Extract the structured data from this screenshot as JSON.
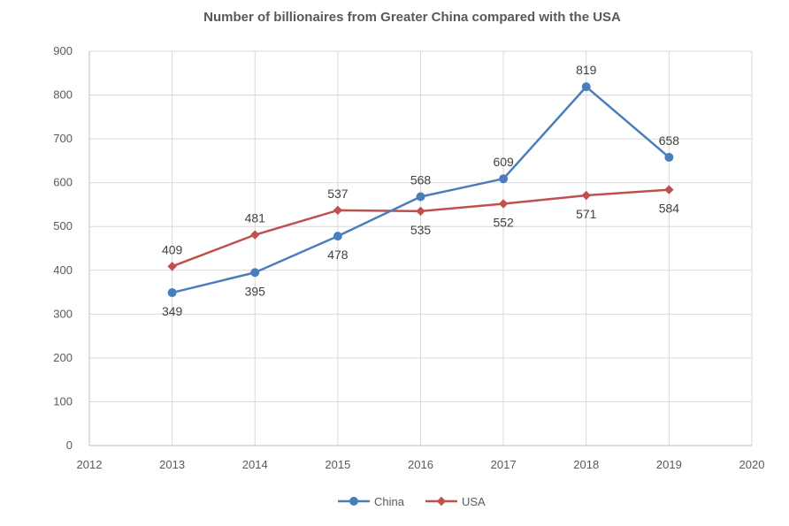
{
  "chart_data": {
    "type": "line",
    "title": "Number of billionaires from Greater China compared with the USA",
    "xlabel": "",
    "ylabel": "",
    "xlim": [
      2012,
      2020
    ],
    "ylim": [
      0,
      900
    ],
    "x_ticks": [
      "2012",
      "2013",
      "2014",
      "2015",
      "2016",
      "2017",
      "2018",
      "2019",
      "2020"
    ],
    "y_ticks": [
      "0",
      "100",
      "200",
      "300",
      "400",
      "500",
      "600",
      "700",
      "800",
      "900"
    ],
    "grid": true,
    "legend_position": "bottom",
    "x": [
      2013,
      2014,
      2015,
      2016,
      2017,
      2018,
      2019
    ],
    "series": [
      {
        "name": "China",
        "color": "#4a7ebb",
        "marker": "circle",
        "values": [
          349,
          395,
          478,
          568,
          609,
          819,
          658
        ],
        "labels": [
          "349",
          "395",
          "478",
          "568",
          "609",
          "819",
          "658"
        ],
        "label_positions": [
          "below",
          "below",
          "below",
          "above",
          "above",
          "above",
          "above"
        ]
      },
      {
        "name": "USA",
        "color": "#c0504d",
        "marker": "diamond",
        "values": [
          409,
          481,
          537,
          535,
          552,
          571,
          584
        ],
        "labels": [
          "409",
          "481",
          "537",
          "535",
          "552",
          "571",
          "584"
        ],
        "label_positions": [
          "above",
          "above",
          "above",
          "below",
          "below",
          "below",
          "below"
        ]
      }
    ]
  }
}
